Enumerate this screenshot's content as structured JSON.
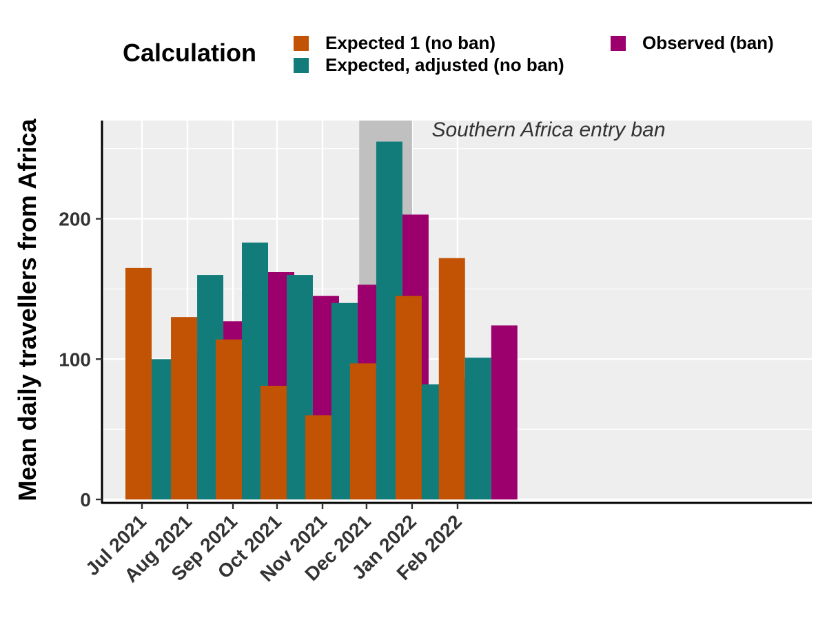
{
  "legend": {
    "title": "Calculation",
    "items": [
      {
        "label": "Expected 1 (no ban)",
        "color": "#C25204"
      },
      {
        "label": "Expected, adjusted (no ban)",
        "color": "#117C7A"
      },
      {
        "label": "Observed (ban)",
        "color": "#9B006C"
      }
    ]
  },
  "chart_data": {
    "type": "bar",
    "ylabel": "Mean daily travellers from Africa",
    "xlabel": "",
    "categories": [
      "Jul 2021",
      "Aug 2021",
      "Sep 2021",
      "Oct 2021",
      "Nov 2021",
      "Dec 2021",
      "Jan 2022",
      "Feb 2022"
    ],
    "series": [
      {
        "name": "Expected 1 (no ban)",
        "color": "#C25204",
        "values": [
          165,
          130,
          114,
          81,
          60,
          97,
          145,
          172
        ]
      },
      {
        "name": "Expected, adjusted (no ban)",
        "color": "#117C7A",
        "values": [
          100,
          160,
          183,
          160,
          140,
          255,
          82,
          101
        ]
      },
      {
        "name": "Observed (ban)",
        "color": "#9B006C",
        "values": [
          104,
          127,
          162,
          145,
          153,
          203,
          86,
          124
        ]
      }
    ],
    "ylim": [
      0,
      270
    ],
    "yticks": [
      0,
      100,
      200
    ],
    "grid": true,
    "annotation": {
      "text": "Southern Africa entry ban",
      "shaded_start": "2021-11-26",
      "shaded_end": "2021-12-31"
    },
    "legend_position": "top"
  }
}
